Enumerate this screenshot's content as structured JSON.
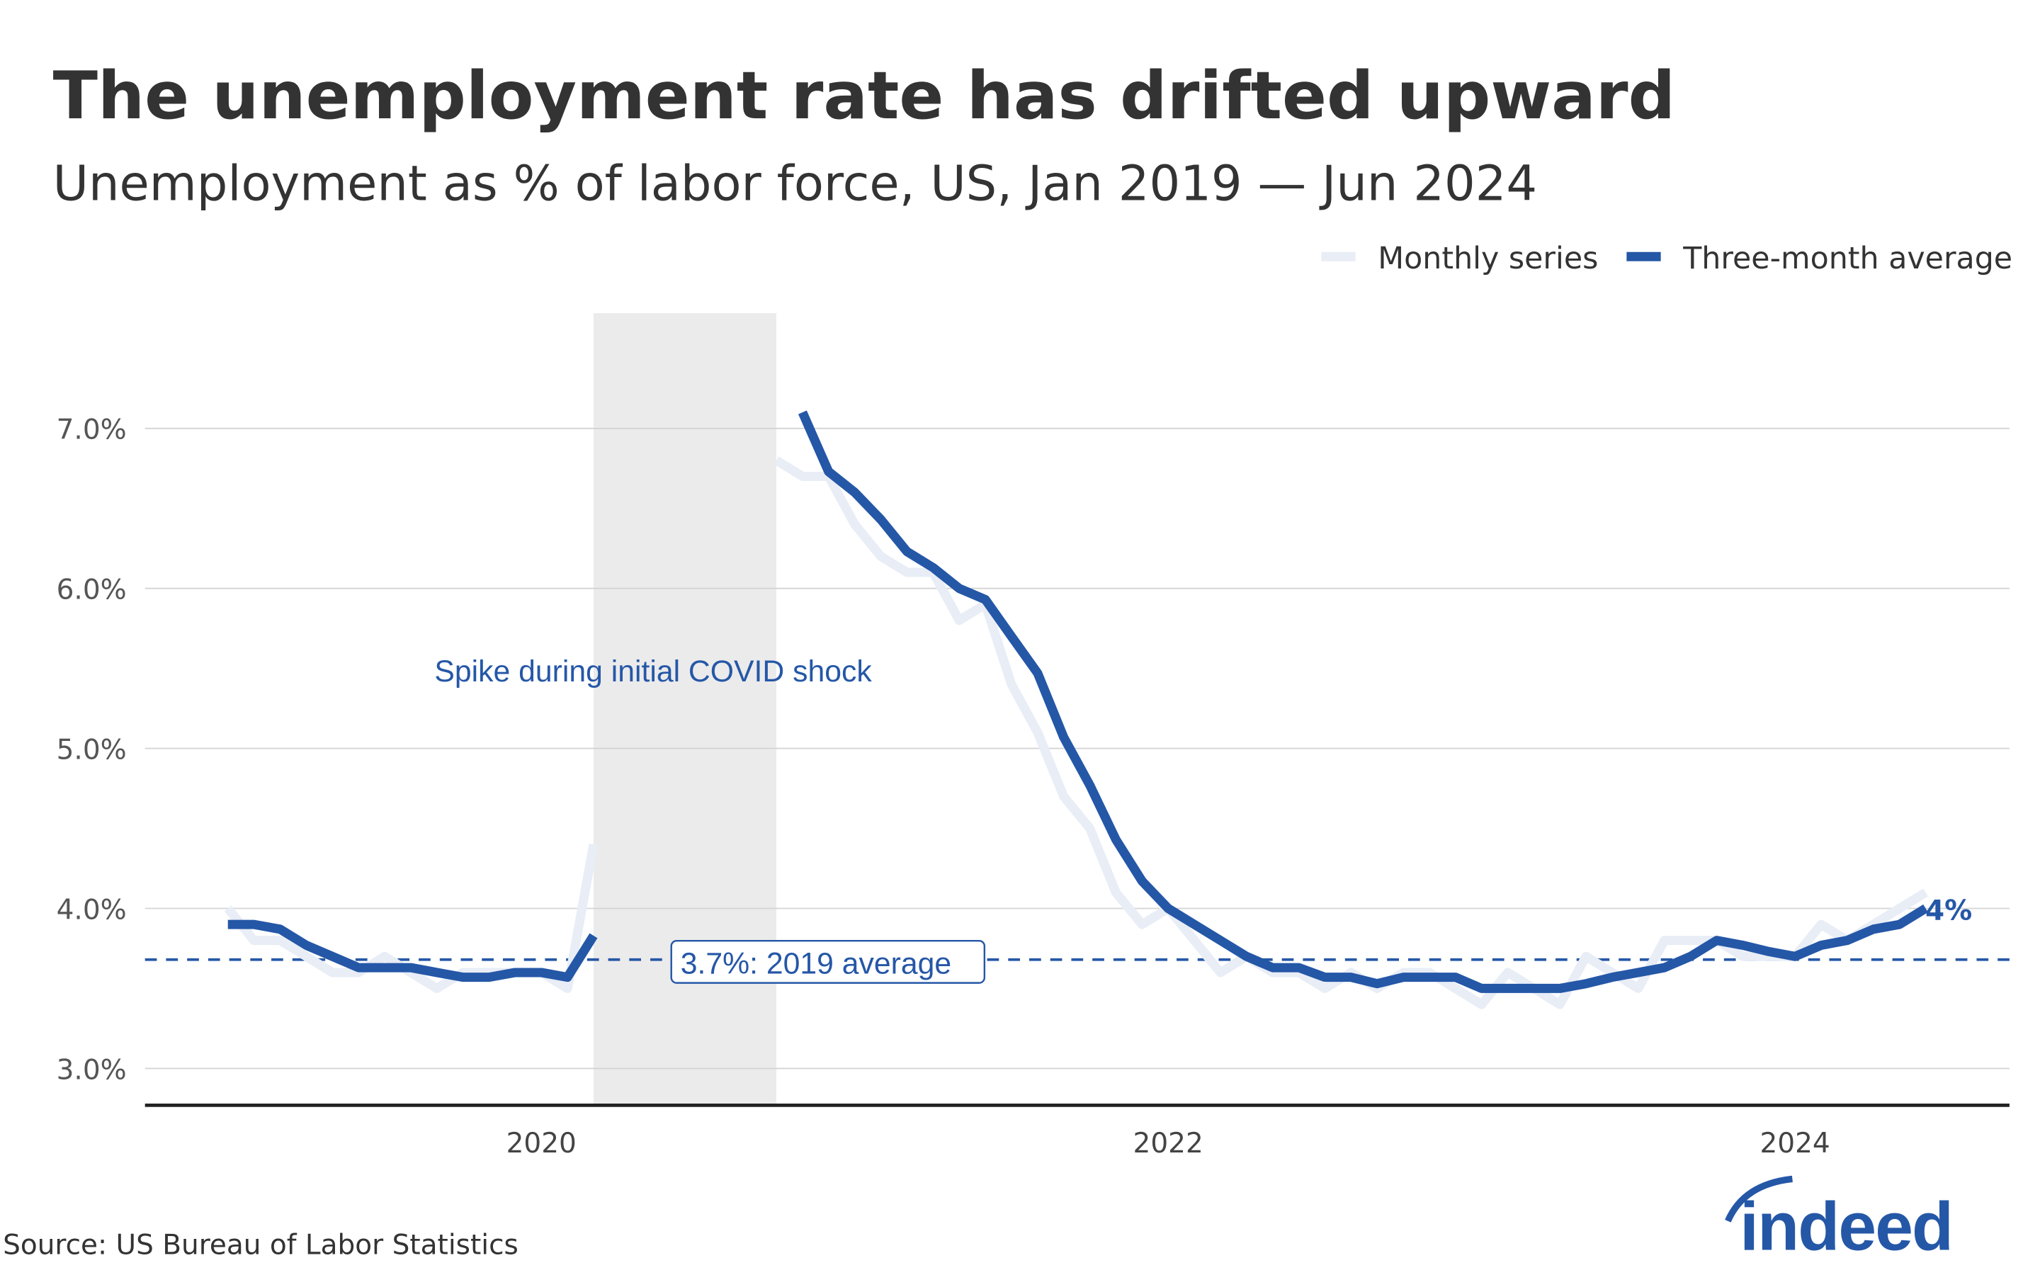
{
  "header": {
    "title": "The unemployment rate has drifted upward",
    "subtitle": "Unemployment as % of labor force, US, Jan 2019 — Jun 2024"
  },
  "footer": {
    "source": "Source: US Bureau of Labor Statistics",
    "logo_text": "indeed"
  },
  "colors": {
    "accent": "#2557a7",
    "monthly": "#e8edf6",
    "shade": "#ebebeb",
    "text": "#333333",
    "grid": "#d4d4d4"
  },
  "chart_data": {
    "type": "line",
    "title": "The unemployment rate has drifted upward",
    "subtitle": "Unemployment as % of labor force, US, Jan 2019 — Jun 2024",
    "x_start": "2019-01",
    "x_frequency": "monthly",
    "x_ticks": [
      "2020",
      "2022",
      "2024"
    ],
    "y_ticks": [
      "3.0%",
      "4.0%",
      "5.0%",
      "6.0%",
      "7.0%"
    ],
    "y_tick_values": [
      3,
      4,
      5,
      6,
      7
    ],
    "ylim": [
      2.77,
      7.72
    ],
    "grid": "horizontal",
    "legend": {
      "placement": "top-right",
      "entries": [
        "Monthly series",
        "Three-month average"
      ]
    },
    "series": [
      {
        "name": "Monthly series",
        "color": "#e8edf6",
        "values": [
          4.0,
          3.8,
          3.8,
          3.7,
          3.6,
          3.6,
          3.7,
          3.6,
          3.5,
          3.6,
          3.6,
          3.6,
          3.6,
          3.5,
          4.4,
          null,
          null,
          null,
          null,
          null,
          null,
          6.8,
          6.7,
          6.7,
          6.4,
          6.2,
          6.1,
          6.1,
          5.8,
          5.9,
          5.4,
          5.1,
          4.7,
          4.5,
          4.1,
          3.9,
          4.0,
          3.8,
          3.6,
          3.7,
          3.6,
          3.6,
          3.5,
          3.6,
          3.5,
          3.6,
          3.6,
          3.5,
          3.4,
          3.6,
          3.5,
          3.4,
          3.7,
          3.6,
          3.5,
          3.8,
          3.8,
          3.8,
          3.7,
          3.7,
          3.7,
          3.9,
          3.8,
          3.9,
          4.0,
          4.1
        ]
      },
      {
        "name": "Three-month average",
        "color": "#2557a7",
        "values": [
          3.9,
          3.9,
          3.87,
          3.77,
          3.7,
          3.63,
          3.63,
          3.63,
          3.6,
          3.57,
          3.57,
          3.6,
          3.6,
          3.57,
          3.83,
          null,
          null,
          null,
          null,
          null,
          null,
          null,
          7.1,
          6.73,
          6.6,
          6.43,
          6.23,
          6.13,
          6.0,
          5.93,
          5.7,
          5.47,
          5.07,
          4.77,
          4.43,
          4.17,
          4.0,
          3.9,
          3.8,
          3.7,
          3.63,
          3.63,
          3.57,
          3.57,
          3.53,
          3.57,
          3.57,
          3.57,
          3.5,
          3.5,
          3.5,
          3.5,
          3.53,
          3.57,
          3.6,
          3.63,
          3.7,
          3.8,
          3.77,
          3.73,
          3.7,
          3.77,
          3.8,
          3.87,
          3.9,
          4.0
        ]
      }
    ],
    "shaded_period": {
      "from": "2020-03",
      "to": "2020-10",
      "label": "Spike during initial COVID shock"
    },
    "reference_line": {
      "value": 3.68,
      "label": "3.7%: 2019 average"
    },
    "end_label": "4%"
  }
}
